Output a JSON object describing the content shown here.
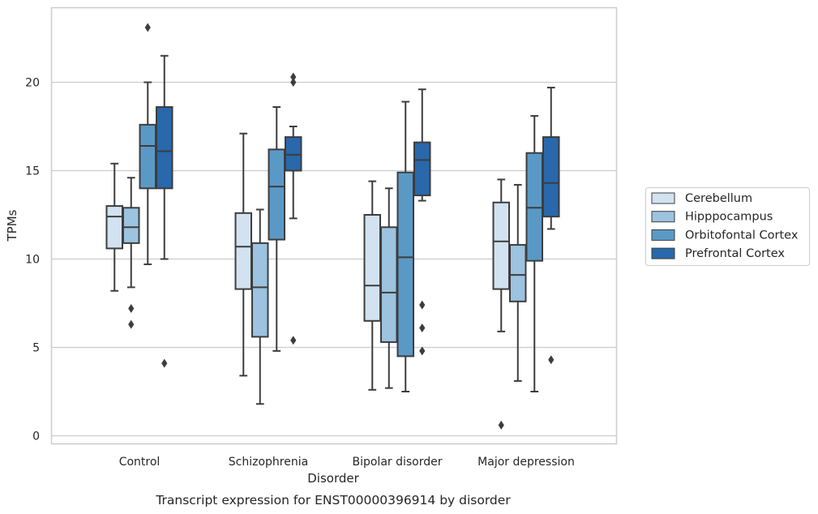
{
  "chart_data": {
    "type": "box",
    "caption": "Transcript expression for ENST00000396914 by disorder",
    "xlabel": "Disorder",
    "ylabel": "TPMs",
    "ylim": [
      -0.4,
      24.2
    ],
    "yticks": [
      0,
      5,
      10,
      15,
      20
    ],
    "grid": "horizontal",
    "legend_position": "right",
    "categories": [
      "Control",
      "Schizophrenia",
      "Bipolar disorder",
      "Major depression"
    ],
    "series": [
      {
        "name": "Cerebellum",
        "color": "#d2e2f0",
        "boxes": [
          {
            "whislo": 8.2,
            "q1": 10.6,
            "med": 12.4,
            "q3": 13.0,
            "whishi": 15.4,
            "fliers": []
          },
          {
            "whislo": 3.4,
            "q1": 8.3,
            "med": 10.7,
            "q3": 12.6,
            "whishi": 17.1,
            "fliers": []
          },
          {
            "whislo": 2.6,
            "q1": 6.5,
            "med": 8.5,
            "q3": 12.5,
            "whishi": 14.4,
            "fliers": []
          },
          {
            "whislo": 5.9,
            "q1": 8.3,
            "med": 11.0,
            "q3": 13.2,
            "whishi": 14.5,
            "fliers": [
              0.6
            ]
          }
        ]
      },
      {
        "name": "Hipppocampus",
        "color": "#9cc3df",
        "boxes": [
          {
            "whislo": 8.4,
            "q1": 10.9,
            "med": 11.8,
            "q3": 12.9,
            "whishi": 14.6,
            "fliers": [
              7.2,
              6.3
            ]
          },
          {
            "whislo": 1.8,
            "q1": 5.6,
            "med": 8.4,
            "q3": 10.9,
            "whishi": 12.8,
            "fliers": []
          },
          {
            "whislo": 2.7,
            "q1": 5.3,
            "med": 8.1,
            "q3": 11.8,
            "whishi": 14.0,
            "fliers": []
          },
          {
            "whislo": 3.1,
            "q1": 7.6,
            "med": 9.1,
            "q3": 10.8,
            "whishi": 14.2,
            "fliers": []
          }
        ]
      },
      {
        "name": "Orbitofontal Cortex",
        "color": "#5a99c6",
        "boxes": [
          {
            "whislo": 9.7,
            "q1": 14.0,
            "med": 16.4,
            "q3": 17.6,
            "whishi": 20.0,
            "fliers": [
              23.1
            ]
          },
          {
            "whislo": 4.8,
            "q1": 11.1,
            "med": 14.1,
            "q3": 16.2,
            "whishi": 18.6,
            "fliers": []
          },
          {
            "whislo": 2.5,
            "q1": 4.5,
            "med": 10.1,
            "q3": 14.9,
            "whishi": 18.9,
            "fliers": []
          },
          {
            "whislo": 2.5,
            "q1": 9.9,
            "med": 12.9,
            "q3": 16.0,
            "whishi": 18.1,
            "fliers": []
          }
        ]
      },
      {
        "name": "Prefrontal Cortex",
        "color": "#2868ab",
        "boxes": [
          {
            "whislo": 10.0,
            "q1": 14.0,
            "med": 16.1,
            "q3": 18.6,
            "whishi": 21.5,
            "fliers": [
              4.1
            ]
          },
          {
            "whislo": 12.3,
            "q1": 15.0,
            "med": 15.9,
            "q3": 16.9,
            "whishi": 17.5,
            "fliers": [
              20.3,
              20.0,
              5.4
            ]
          },
          {
            "whislo": 13.3,
            "q1": 13.6,
            "med": 15.6,
            "q3": 16.6,
            "whishi": 19.6,
            "fliers": [
              7.4,
              6.1,
              4.8
            ]
          },
          {
            "whislo": 11.7,
            "q1": 12.4,
            "med": 14.3,
            "q3": 16.9,
            "whishi": 19.7,
            "fliers": [
              4.3
            ]
          }
        ]
      }
    ]
  }
}
